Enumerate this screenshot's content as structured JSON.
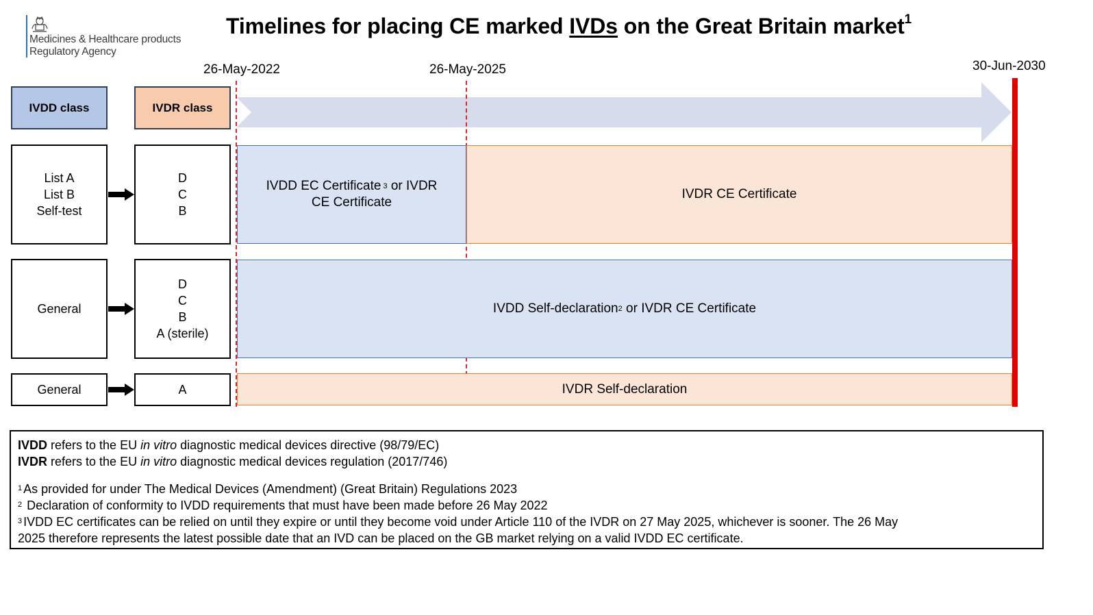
{
  "header": {
    "agency_line1": "Medicines & Healthcare products",
    "agency_line2": "Regulatory Agency",
    "title_before": "Timelines for placing CE marked ",
    "title_underlined": "IVDs",
    "title_after": " on the Great Britain market",
    "title_sup": "1"
  },
  "timeline": {
    "date_start": "26-May-2022",
    "date_mid": "26-May-2025",
    "date_end": "30-Jun-2030"
  },
  "columns": {
    "ivdd_header": "IVDD class",
    "ivdr_header": "IVDR class"
  },
  "rows": [
    {
      "ivdd_lines": [
        "List A",
        "List B",
        "Self-test"
      ],
      "ivdr_lines": [
        "D",
        "C",
        "B"
      ],
      "band_left_line1_a": "IVDD EC Certificate",
      "band_left_sup": "3",
      "band_left_line1_b": " or IVDR",
      "band_left_line2": "CE Certificate",
      "band_right": "IVDR CE Certificate"
    },
    {
      "ivdd_lines": [
        "General"
      ],
      "ivdr_lines": [
        "D",
        "C",
        "B",
        "A (sterile)"
      ],
      "band_a": "IVDD Self-declaration",
      "band_sup": "2",
      "band_b": " or IVDR CE Certificate"
    },
    {
      "ivdd_lines": [
        "General"
      ],
      "ivdr_lines": [
        "A"
      ],
      "band": "IVDR Self-declaration"
    }
  ],
  "notes": {
    "ivdd_bold": "IVDD",
    "ivdd_pre": " refers to the EU ",
    "ivdd_italic": "in vitro",
    "ivdd_post": " diagnostic medical devices directive (98/79/EC)",
    "ivdr_bold": "IVDR",
    "ivdr_pre": " refers to the EU ",
    "ivdr_italic": "in vitro",
    "ivdr_post": " diagnostic medical devices regulation (2017/746)",
    "fn1_num": "1",
    "fn1": "As provided for under The Medical Devices (Amendment) (Great Britain) Regulations 2023",
    "fn2_num": "2",
    "fn2": " Declaration of conformity to IVDD requirements that must have been made before 26 May 2022",
    "fn3_num": "3",
    "fn3_line1": "IVDD EC certificates can be relied on until they expire or until they become void under Article 110 of the IVDR on 27 May 2025, whichever is sooner. The 26 May",
    "fn3_line2": "2025 therefore represents the latest possible date that an IVD can be placed on the GB market relying on a valid IVDD EC certificate."
  },
  "colors": {
    "ivdd_blue": "#b4c7e7",
    "ivdr_orange": "#f8cbad",
    "band_blue": "#dae3f3",
    "band_orange": "#fbe5d6",
    "timeline_arrow": "#d6dcec",
    "deadline_red": "#e00000"
  }
}
